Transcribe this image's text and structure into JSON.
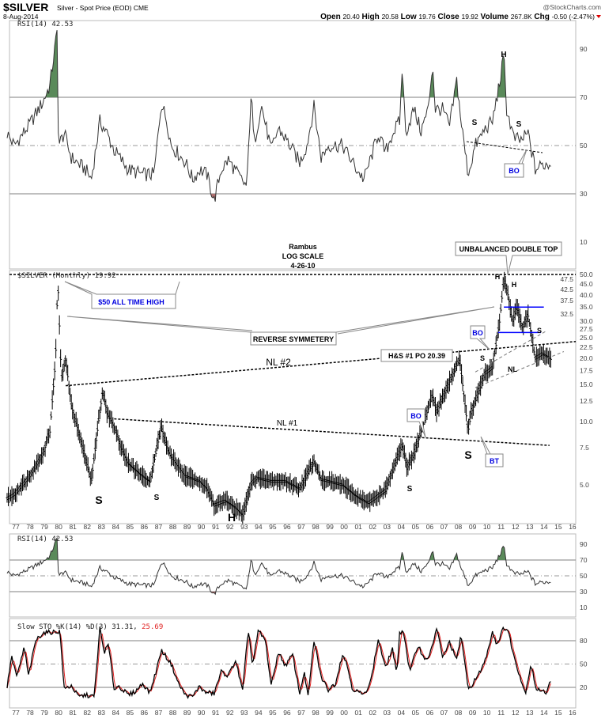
{
  "header": {
    "symbol": "$SILVER",
    "name": "Silver - Spot Price (EOD) CME",
    "date": "8-Aug-2014",
    "credit": "@StockCharts.com",
    "stats": [
      {
        "label": "Open",
        "value": "20.40"
      },
      {
        "label": "High",
        "value": "20.58"
      },
      {
        "label": "Low",
        "value": "19.76"
      },
      {
        "label": "Close",
        "value": "19.92"
      },
      {
        "label": "Volume",
        "value": "267.8K"
      },
      {
        "label": "Chg",
        "value": "-0.50 (-2.47%)"
      }
    ],
    "chg_direction": "down"
  },
  "colors": {
    "price": "#000000",
    "overbought_fill": "#5a8a5a",
    "oversold_fill": "#b07070",
    "pct_d": "#e02020",
    "annotation_blue": "#0000e0",
    "blue_lines": "#0000ff"
  },
  "chart_data": [
    {
      "type": "line",
      "panel": "top-rsi",
      "label": "RSI(14) 42.53",
      "yticks": [
        90,
        70,
        50,
        30,
        10
      ],
      "ylim": [
        0,
        100
      ],
      "reference_lines": [
        70,
        50,
        30
      ],
      "values": [
        [
          1976.5,
          55
        ],
        [
          1977,
          50
        ],
        [
          1978,
          58
        ],
        [
          1979,
          68
        ],
        [
          1979.5,
          75
        ],
        [
          1980,
          97
        ],
        [
          1980.1,
          50
        ],
        [
          1980.5,
          55
        ],
        [
          1981,
          45
        ],
        [
          1982,
          40
        ],
        [
          1982.4,
          36
        ],
        [
          1983,
          60
        ],
        [
          1983.5,
          55
        ],
        [
          1984,
          48
        ],
        [
          1985,
          40
        ],
        [
          1986,
          38
        ],
        [
          1986.8,
          38
        ],
        [
          1987.3,
          68
        ],
        [
          1987.7,
          60
        ],
        [
          1988,
          50
        ],
        [
          1989,
          43
        ],
        [
          1989.5,
          36
        ],
        [
          1990,
          40
        ],
        [
          1990.5,
          38
        ],
        [
          1991,
          27
        ],
        [
          1991.5,
          40
        ],
        [
          1992,
          44
        ],
        [
          1993,
          35
        ],
        [
          1993.3,
          33
        ],
        [
          1993.6,
          73
        ],
        [
          1993.8,
          50
        ],
        [
          1994.3,
          67
        ],
        [
          1995,
          48
        ],
        [
          1995.5,
          57
        ],
        [
          1996,
          53
        ],
        [
          1997,
          43
        ],
        [
          1997.5,
          50
        ],
        [
          1998,
          66
        ],
        [
          1998.5,
          45
        ],
        [
          1999,
          50
        ],
        [
          2000,
          50
        ],
        [
          2001,
          40
        ],
        [
          2001.5,
          36
        ],
        [
          2002,
          45
        ],
        [
          2002.5,
          55
        ],
        [
          2003,
          47
        ],
        [
          2003.5,
          55
        ],
        [
          2004,
          60
        ],
        [
          2004.2,
          84
        ],
        [
          2004.4,
          55
        ],
        [
          2005,
          65
        ],
        [
          2005.5,
          56
        ],
        [
          2006,
          65
        ],
        [
          2006.3,
          84
        ],
        [
          2006.5,
          65
        ],
        [
          2007,
          65
        ],
        [
          2007.5,
          58
        ],
        [
          2008,
          77
        ],
        [
          2008.3,
          60
        ],
        [
          2008.8,
          38
        ],
        [
          2009.3,
          50
        ],
        [
          2010,
          57
        ],
        [
          2010.5,
          60
        ],
        [
          2011,
          76
        ],
        [
          2011.3,
          87
        ],
        [
          2011.5,
          65
        ],
        [
          2012,
          53
        ],
        [
          2012.5,
          52
        ],
        [
          2013,
          55
        ],
        [
          2013.5,
          40
        ],
        [
          2014,
          42
        ],
        [
          2014.6,
          42.5
        ]
      ]
    },
    {
      "type": "bar",
      "subtype": "ohlc",
      "panel": "price",
      "label": "$SILVER (Monthly) 19.92",
      "scale": "log",
      "yticks": [
        "50.0",
        "47.5",
        "45.0",
        "42.5",
        "40.0",
        "37.5",
        "35.0",
        "32.5",
        "30.0",
        "27.5",
        "25.0",
        "22.5",
        "20.0",
        "17.5",
        "15.0",
        "12.5",
        "10.0",
        "7.5",
        "5.0"
      ],
      "xticks": [
        "77",
        "78",
        "79",
        "80",
        "81",
        "82",
        "83",
        "84",
        "85",
        "86",
        "87",
        "88",
        "89",
        "90",
        "91",
        "92",
        "93",
        "94",
        "95",
        "96",
        "97",
        "98",
        "99",
        "00",
        "01",
        "02",
        "03",
        "04",
        "05",
        "06",
        "07",
        "08",
        "09",
        "10",
        "11",
        "12",
        "13",
        "14",
        "15",
        "16"
      ],
      "values": [
        [
          1976.5,
          4.3
        ],
        [
          1977,
          4.5
        ],
        [
          1978,
          5.4
        ],
        [
          1979,
          7
        ],
        [
          1979.5,
          9
        ],
        [
          1979.9,
          20
        ],
        [
          1980.05,
          48
        ],
        [
          1980.3,
          16
        ],
        [
          1980.6,
          20
        ],
        [
          1981,
          12
        ],
        [
          1981.5,
          9
        ],
        [
          1982.4,
          5.2
        ],
        [
          1982.9,
          10
        ],
        [
          1983.2,
          14
        ],
        [
          1983.5,
          11
        ],
        [
          1984,
          9.5
        ],
        [
          1984.5,
          7.5
        ],
        [
          1985,
          6.3
        ],
        [
          1986,
          5.5
        ],
        [
          1986.5,
          5.2
        ],
        [
          1987.3,
          9.5
        ],
        [
          1987.7,
          7.5
        ],
        [
          1988,
          6.8
        ],
        [
          1989,
          5.5
        ],
        [
          1990,
          5.2
        ],
        [
          1990.5,
          4.8
        ],
        [
          1991,
          4
        ],
        [
          1991.8,
          4.2
        ],
        [
          1992.5,
          3.9
        ],
        [
          1993,
          3.6
        ],
        [
          1993.6,
          5.1
        ],
        [
          1994,
          5.4
        ],
        [
          1995,
          5.2
        ],
        [
          1996,
          5.2
        ],
        [
          1997,
          4.8
        ],
        [
          1998,
          6.5
        ],
        [
          1998.5,
          5.3
        ],
        [
          1999,
          5.2
        ],
        [
          2000,
          5
        ],
        [
          2001,
          4.4
        ],
        [
          2001.8,
          4.1
        ],
        [
          2003,
          4.7
        ],
        [
          2004.2,
          7.8
        ],
        [
          2004.5,
          6
        ],
        [
          2005,
          7
        ],
        [
          2006.3,
          13.5
        ],
        [
          2006.6,
          11
        ],
        [
          2007,
          13
        ],
        [
          2008.2,
          20
        ],
        [
          2008.8,
          9
        ],
        [
          2009,
          11
        ],
        [
          2010,
          17
        ],
        [
          2010.5,
          18
        ],
        [
          2011,
          30
        ],
        [
          2011.3,
          48
        ],
        [
          2011.6,
          40
        ],
        [
          2011.9,
          30
        ],
        [
          2012.2,
          35
        ],
        [
          2012.6,
          28
        ],
        [
          2013,
          32
        ],
        [
          2013.5,
          20
        ],
        [
          2014,
          21
        ],
        [
          2014.6,
          19.92
        ]
      ],
      "annotations": {
        "rambus": "Rambus",
        "log_scale": "LOG SCALE",
        "date": "4-26-10",
        "double_top": "UNBALANCED DOUBLE TOP",
        "ath": "$50 ALL TIME HIGH",
        "reverse_symmetry": "REVERSE SYMMETERY",
        "nl2": "NL #2",
        "nl1": "NL #1",
        "hs_po": "H&S #1 PO 20.39",
        "bo": "BO",
        "bt": "BT",
        "s": "S",
        "h": "H",
        "nl": "NL"
      },
      "trendlines": {
        "all_time_high": 50,
        "nl2": [
          [
            1980.6,
            14.8
          ],
          [
            2016,
            24
          ]
        ],
        "nl1": [
          [
            1984,
            10.3
          ],
          [
            2014.5,
            7.7
          ]
        ],
        "blue_top": 35,
        "blue_bottom": 26.5
      }
    },
    {
      "type": "line",
      "panel": "lower-rsi",
      "label": "RSI(14) 42.53",
      "yticks": [
        90,
        70,
        50,
        30,
        10
      ],
      "reference_lines": [
        70,
        50,
        30
      ]
    },
    {
      "type": "line",
      "panel": "slow-sto",
      "label": "Slow STO %K(14) %D(3) 31.31,",
      "label_d": "25.69",
      "yticks": [
        80,
        50,
        20
      ],
      "reference_lines": [
        80,
        50,
        20
      ],
      "k_values": [
        [
          1976.5,
          20
        ],
        [
          1976.8,
          60
        ],
        [
          1977.2,
          33
        ],
        [
          1977.7,
          72
        ],
        [
          1978,
          35
        ],
        [
          1978.5,
          80
        ],
        [
          1979,
          90
        ],
        [
          1980.2,
          92
        ],
        [
          1980.5,
          18
        ],
        [
          1981,
          22
        ],
        [
          1981.5,
          8
        ],
        [
          1982,
          10
        ],
        [
          1982.6,
          8
        ],
        [
          1983,
          96
        ],
        [
          1983.3,
          65
        ],
        [
          1983.6,
          75
        ],
        [
          1984,
          18
        ],
        [
          1984.3,
          22
        ],
        [
          1985,
          10
        ],
        [
          1985.5,
          15
        ],
        [
          1986,
          25
        ],
        [
          1986.5,
          13
        ],
        [
          1987,
          45
        ],
        [
          1987.3,
          68
        ],
        [
          1988,
          50
        ],
        [
          1988.5,
          25
        ],
        [
          1989,
          10
        ],
        [
          1989.5,
          8
        ],
        [
          1990,
          22
        ],
        [
          1990.3,
          14
        ],
        [
          1991,
          12
        ],
        [
          1991.5,
          40
        ],
        [
          1992,
          35
        ],
        [
          1992.5,
          55
        ],
        [
          1993,
          15
        ],
        [
          1993.4,
          95
        ],
        [
          1993.7,
          48
        ],
        [
          1994.1,
          93
        ],
        [
          1994.6,
          80
        ],
        [
          1995,
          22
        ],
        [
          1995.5,
          65
        ],
        [
          1996,
          48
        ],
        [
          1996.5,
          62
        ],
        [
          1997,
          12
        ],
        [
          1997.3,
          40
        ],
        [
          1997.6,
          8
        ],
        [
          1998,
          80
        ],
        [
          1998.5,
          33
        ],
        [
          1999,
          17
        ],
        [
          1999.5,
          25
        ],
        [
          2000,
          63
        ],
        [
          2000.3,
          50
        ],
        [
          2000.7,
          18
        ],
        [
          2001.5,
          10
        ],
        [
          2002,
          30
        ],
        [
          2002.5,
          82
        ],
        [
          2003,
          45
        ],
        [
          2003.5,
          70
        ],
        [
          2003.8,
          35
        ],
        [
          2004,
          92
        ],
        [
          2004.3,
          90
        ],
        [
          2004.7,
          40
        ],
        [
          2005.3,
          75
        ],
        [
          2005.7,
          57
        ],
        [
          2006.1,
          60
        ],
        [
          2006.6,
          97
        ],
        [
          2007,
          58
        ],
        [
          2007.5,
          78
        ],
        [
          2008,
          55
        ],
        [
          2008.3,
          88
        ],
        [
          2008.8,
          17
        ],
        [
          2009.5,
          35
        ],
        [
          2010,
          55
        ],
        [
          2010.5,
          92
        ],
        [
          2010.8,
          75
        ],
        [
          2011.3,
          97
        ],
        [
          2011.6,
          93
        ],
        [
          2012,
          60
        ],
        [
          2012.5,
          30
        ],
        [
          2012.8,
          12
        ],
        [
          2013.2,
          50
        ],
        [
          2013.6,
          15
        ],
        [
          2014,
          18
        ],
        [
          2014.3,
          12
        ],
        [
          2014.6,
          31.31
        ]
      ]
    }
  ]
}
